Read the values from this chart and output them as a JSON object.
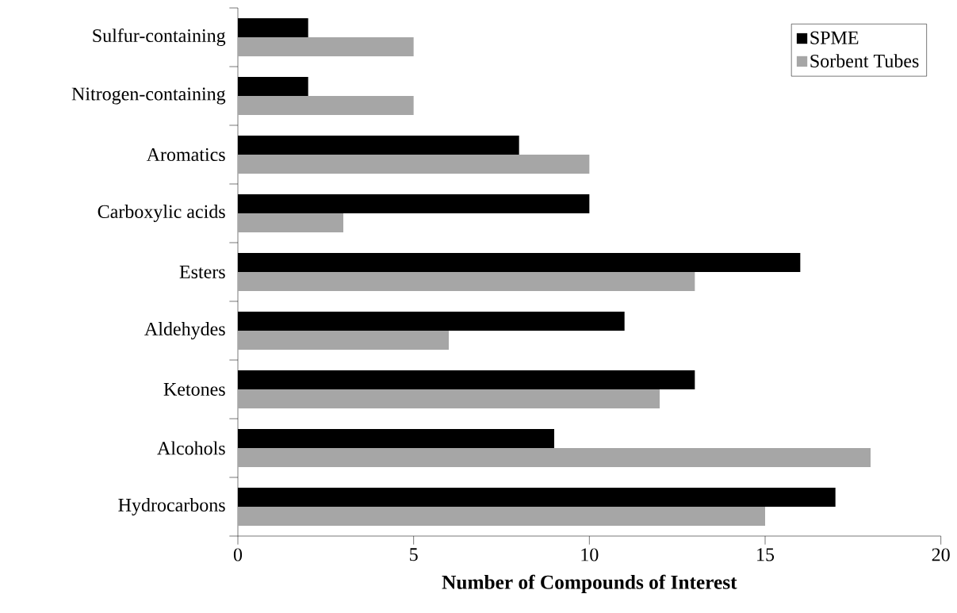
{
  "chart_data": {
    "type": "bar",
    "orientation": "horizontal",
    "xlabel": "Number of Compounds of Interest",
    "categories": [
      "Sulfur-containing",
      "Nitrogen-containing",
      "Aromatics",
      "Carboxylic acids",
      "Esters",
      "Aldehydes",
      "Ketones",
      "Alcohols",
      "Hydrocarbons"
    ],
    "series": [
      {
        "name": "SPME",
        "color": "#000000",
        "values": [
          2,
          2,
          8,
          10,
          16,
          11,
          13,
          9,
          17
        ]
      },
      {
        "name": "Sorbent Tubes",
        "color": "#a6a6a6",
        "values": [
          5,
          5,
          10,
          3,
          13,
          6,
          12,
          18,
          15
        ]
      }
    ],
    "xlim": [
      0,
      20
    ],
    "xticks": [
      0,
      5,
      10,
      15,
      20
    ],
    "grid": false,
    "legend": "top right"
  }
}
